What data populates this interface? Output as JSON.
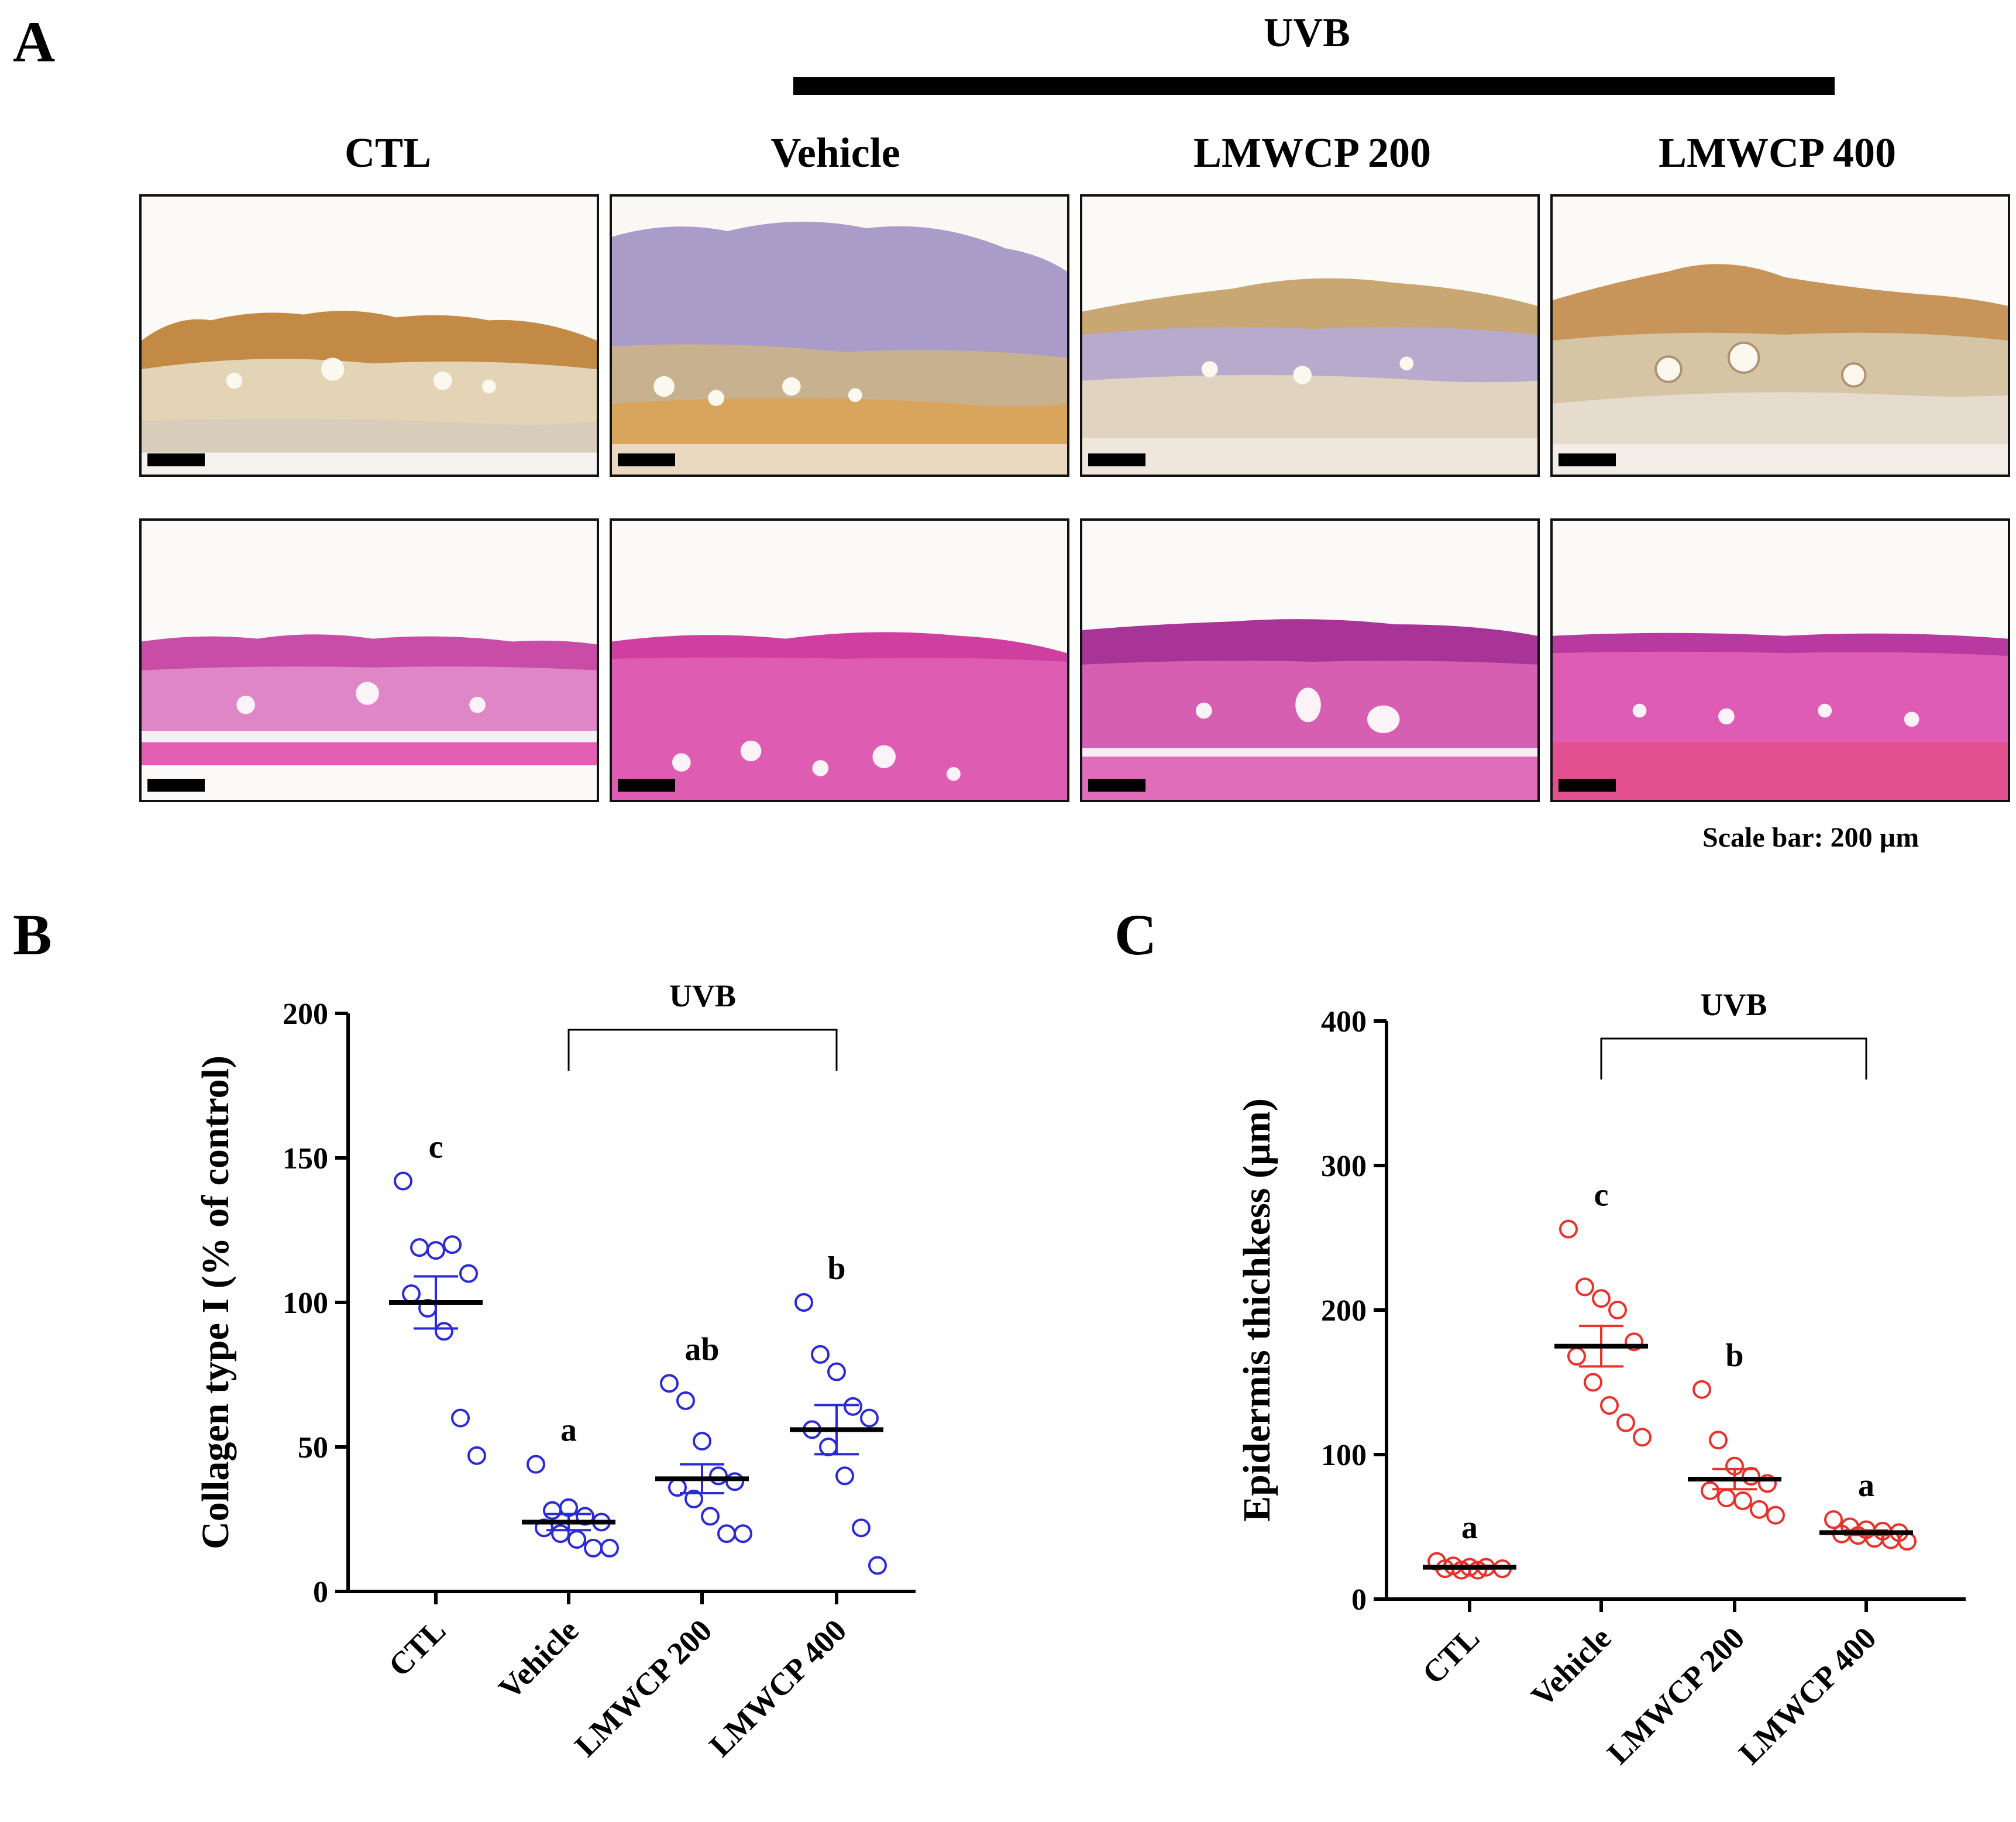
{
  "panels": {
    "a_label": "A",
    "b_label": "B",
    "c_label": "C"
  },
  "panel_a": {
    "uvb_label": "UVB",
    "columns": [
      "CTL",
      "Vehicle",
      "LMWCP 200",
      "LMWCP 400"
    ],
    "rows": [
      "collagen-ihc",
      "h-and-e"
    ],
    "scale_bar_label": "Scale bar: 200 µm"
  },
  "colors": {
    "collagen_marker": "#2b2bd6",
    "epidermis_marker": "#e8322b",
    "ihc_stain": "#b97a3a",
    "he_stain": "#d9479a"
  },
  "chart_data": [
    {
      "type": "scatter",
      "title": "",
      "xlabel": "",
      "ylabel": "Collagen type I (% of control)",
      "ylim": [
        0,
        200
      ],
      "yticks": [
        0,
        50,
        100,
        150,
        200
      ],
      "categories": [
        "CTL",
        "Vehicle",
        "LMWCP 200",
        "LMWCP 400"
      ],
      "bracket_label": "UVB",
      "bracket_groups": [
        "Vehicle",
        "LMWCP 400"
      ],
      "series": [
        {
          "name": "CTL",
          "values": [
            142,
            119,
            118,
            120,
            110,
            103,
            98,
            90,
            60,
            47
          ],
          "mean": 100,
          "sem": 9,
          "letter": "c"
        },
        {
          "name": "Vehicle",
          "values": [
            44,
            28,
            29,
            26,
            24,
            22,
            20,
            18,
            15,
            15
          ],
          "mean": 24,
          "sem": 2.8,
          "letter": "a"
        },
        {
          "name": "LMWCP 200",
          "values": [
            72,
            66,
            52,
            40,
            38,
            36,
            32,
            26,
            20,
            20
          ],
          "mean": 39,
          "sem": 5,
          "letter": "ab"
        },
        {
          "name": "LMWCP 400",
          "values": [
            100,
            82,
            76,
            64,
            60,
            56,
            50,
            40,
            22,
            9
          ],
          "mean": 56,
          "sem": 8.5,
          "letter": "b"
        }
      ]
    },
    {
      "type": "scatter",
      "title": "",
      "xlabel": "",
      "ylabel": "Epidermis thichkess (µm)",
      "ylim": [
        0,
        400
      ],
      "yticks": [
        0,
        100,
        200,
        300,
        400
      ],
      "categories": [
        "CTL",
        "Vehicle",
        "LMWCP 200",
        "LMWCP 400"
      ],
      "bracket_label": "UVB",
      "bracket_groups": [
        "Vehicle",
        "LMWCP 400"
      ],
      "series": [
        {
          "name": "CTL",
          "values": [
            26,
            23,
            22,
            22,
            21,
            21,
            20,
            20
          ],
          "mean": 22,
          "sem": 1,
          "letter": "a"
        },
        {
          "name": "Vehicle",
          "values": [
            256,
            216,
            208,
            200,
            178,
            168,
            150,
            134,
            122,
            112
          ],
          "mean": 175,
          "sem": 14,
          "letter": "c"
        },
        {
          "name": "LMWCP 200",
          "values": [
            145,
            110,
            92,
            85,
            80,
            75,
            70,
            68,
            62,
            58
          ],
          "mean": 83,
          "sem": 7,
          "letter": "b"
        },
        {
          "name": "LMWCP 400",
          "values": [
            55,
            50,
            48,
            47,
            46,
            45,
            44,
            42,
            41,
            40
          ],
          "mean": 46,
          "sem": 1.6,
          "letter": "a"
        }
      ]
    }
  ]
}
